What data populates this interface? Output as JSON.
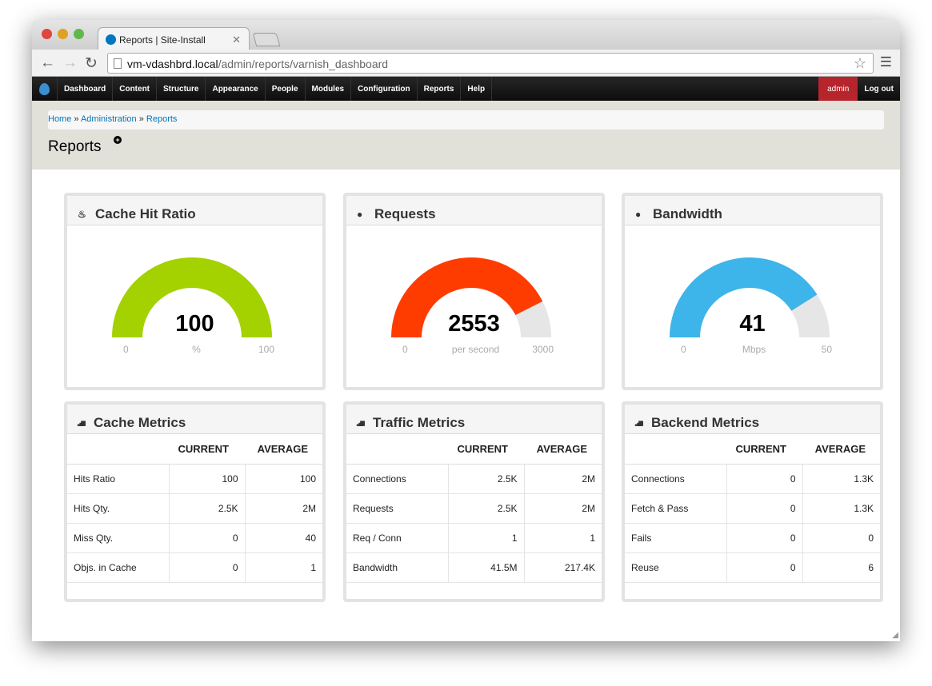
{
  "browser": {
    "tab_title": "Reports | Site-Install",
    "url_host": "vm-vdashbrd.local",
    "url_path": "/admin/reports/varnish_dashboard"
  },
  "admin_menu": {
    "items": [
      "Dashboard",
      "Content",
      "Structure",
      "Appearance",
      "People",
      "Modules",
      "Configuration",
      "Reports",
      "Help"
    ],
    "user": "admin",
    "logout": "Log out"
  },
  "breadcrumb": [
    "Home",
    "Administration",
    "Reports"
  ],
  "page_title": "Reports",
  "gauges": [
    {
      "title": "Cache Hit Ratio",
      "icon": "fire-icon",
      "value": 100,
      "display": "100",
      "min": "0",
      "max": "100",
      "unit": "%",
      "color": "#a4d100"
    },
    {
      "title": "Requests",
      "icon": "globe-icon",
      "value": 2553,
      "display": "2553",
      "min": "0",
      "max": "3000",
      "unit": "per second",
      "color": "#ff3c00"
    },
    {
      "title": "Bandwidth",
      "icon": "globe-icon",
      "value": 41,
      "display": "41",
      "min": "0",
      "max": "50",
      "unit": "Mbps",
      "color": "#3db4ea"
    }
  ],
  "tables": [
    {
      "title": "Cache Metrics",
      "headers": [
        "CURRENT",
        "AVERAGE"
      ],
      "rows": [
        [
          "Hits Ratio",
          "100",
          "100"
        ],
        [
          "Hits Qty.",
          "2.5K",
          "2M"
        ],
        [
          "Miss Qty.",
          "0",
          "40"
        ],
        [
          "Objs. in Cache",
          "0",
          "1"
        ]
      ]
    },
    {
      "title": "Traffic Metrics",
      "headers": [
        "CURRENT",
        "AVERAGE"
      ],
      "rows": [
        [
          "Connections",
          "2.5K",
          "2M"
        ],
        [
          "Requests",
          "2.5K",
          "2M"
        ],
        [
          "Req / Conn",
          "1",
          "1"
        ],
        [
          "Bandwidth",
          "41.5M",
          "217.4K"
        ]
      ]
    },
    {
      "title": "Backend Metrics",
      "headers": [
        "CURRENT",
        "AVERAGE"
      ],
      "rows": [
        [
          "Connections",
          "0",
          "1.3K"
        ],
        [
          "Fetch & Pass",
          "0",
          "1.3K"
        ],
        [
          "Fails",
          "0",
          "0"
        ],
        [
          "Reuse",
          "0",
          "6"
        ]
      ]
    }
  ]
}
